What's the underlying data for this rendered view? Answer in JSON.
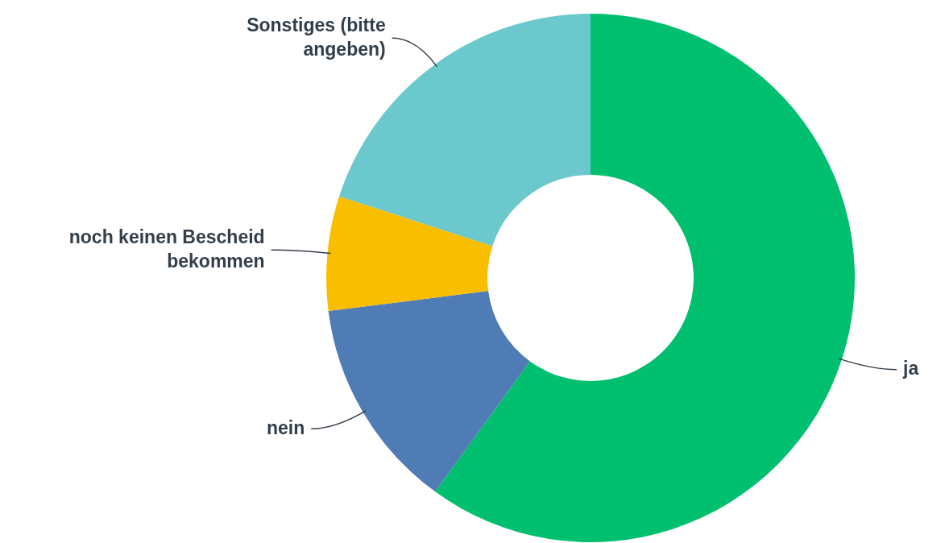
{
  "chart_data": {
    "type": "donut",
    "categories": [
      "ja",
      "nein",
      "noch keinen Bescheid bekommen",
      "Sonstiges (bitte angeben)"
    ],
    "values": [
      60,
      13,
      7,
      20
    ],
    "colors": [
      "#00bf6f",
      "#507cb6",
      "#f9be00",
      "#6bc8cd"
    ],
    "legend": false
  }
}
